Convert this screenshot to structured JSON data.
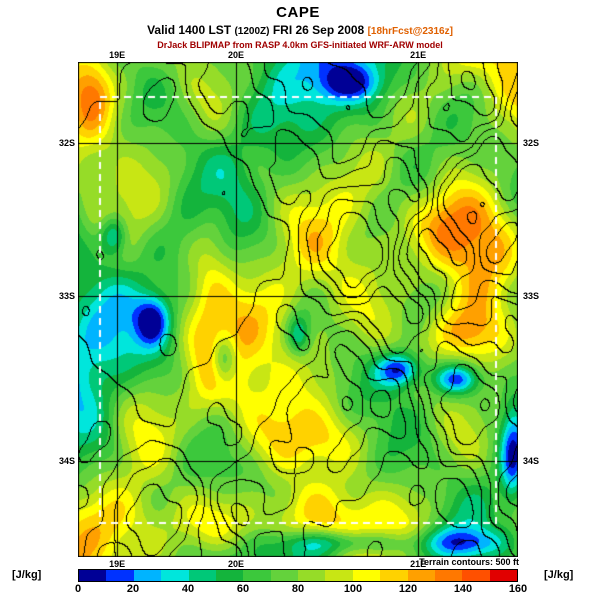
{
  "header": {
    "title": "CAPE",
    "valid_prefix": "Valid 1400 LST",
    "valid_zulu": "(1200Z)",
    "valid_date": "FRI 26 Sep 2008",
    "forecast_tag": "[18hrFcst@2316z]",
    "model_line": "DrJack BLIPMAP from RASP 4.0km GFS-initiated WRF-ARW model"
  },
  "map": {
    "x_axis": {
      "labels": [
        "19E",
        "20E",
        "21E"
      ],
      "fractions": [
        0.089,
        0.359,
        0.773
      ]
    },
    "y_axis": {
      "labels": [
        "32S",
        "33S",
        "34S"
      ],
      "fractions": [
        0.163,
        0.472,
        0.806
      ]
    }
  },
  "colorbar": {
    "unit": "[J/kg]",
    "min": 0,
    "max": 160,
    "tick_labels": [
      "0",
      "20",
      "40",
      "60",
      "80",
      "100",
      "120",
      "140",
      "160"
    ],
    "colors": [
      "#000096",
      "#0032ff",
      "#00b4ff",
      "#00e6dc",
      "#00c878",
      "#14b43c",
      "#3cc83c",
      "#64d23c",
      "#96dc28",
      "#c8e614",
      "#ffff00",
      "#ffd200",
      "#ffa000",
      "#ff7800",
      "#ff5000",
      "#e10000"
    ]
  },
  "footer": {
    "terrain_note": "Terrain contours: 500 ft"
  },
  "colors": {
    "forecast_tag": "#e06000",
    "model_line": "#a00000",
    "terrain_contours": "#000000",
    "subdomain_box": "#ffffff"
  }
}
